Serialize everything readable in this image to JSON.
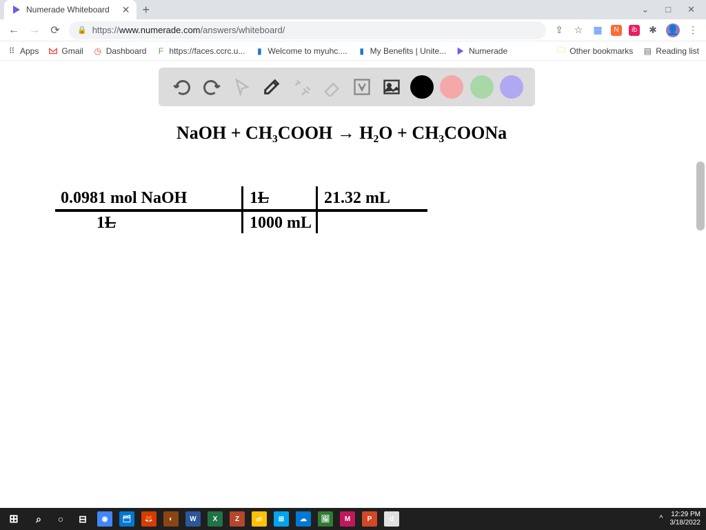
{
  "browser": {
    "tab_title": "Numerade Whiteboard",
    "url_https": "https://",
    "url_domain": "www.numerade.com",
    "url_path": "/answers/whiteboard/",
    "win_min": "⌄",
    "win_max": "□",
    "win_close": "✕"
  },
  "bookmarks": {
    "apps": "Apps",
    "gmail": "Gmail",
    "dashboard": "Dashboard",
    "faces": "https://faces.ccrc.u...",
    "myuhc": "Welcome to myuhc....",
    "benefits": "My Benefits | Unite...",
    "numerade": "Numerade",
    "other": "Other bookmarks",
    "reading": "Reading list"
  },
  "toolbar": {
    "colors": {
      "black": "#000000",
      "red": "#f4a8a8",
      "green": "#a8d8a8",
      "purple": "#b0a8f0"
    }
  },
  "handwriting": {
    "equation": "NaOH  +  CH₃COOH  →  H₂O  + CH₃COONa",
    "top1": "0.0981 mol NaOH",
    "top2": "1 L",
    "top3": "21.32 mL",
    "bot1": "1 L",
    "bot2": "1000 mL"
  },
  "clock": {
    "time": "12:29 PM",
    "date": "3/18/2022"
  },
  "taskbar_apps": [
    {
      "bg": "#0078d4",
      "label": "⊞"
    },
    {
      "bg": "#333",
      "label": "⌕"
    },
    {
      "bg": "#333",
      "label": "○"
    },
    {
      "bg": "#333",
      "label": "⊟"
    },
    {
      "bg": "#4285f4",
      "label": "◉"
    },
    {
      "bg": "#0078d4",
      "label": "🗂"
    },
    {
      "bg": "#d83b01",
      "label": "🦊"
    },
    {
      "bg": "#8b4513",
      "label": "◐"
    },
    {
      "bg": "#2b579a",
      "label": "W"
    },
    {
      "bg": "#217346",
      "label": "X"
    },
    {
      "bg": "#b7472a",
      "label": "Z"
    },
    {
      "bg": "#ffc107",
      "label": "📁"
    },
    {
      "bg": "#00a4ef",
      "label": "⊞"
    },
    {
      "bg": "#0078d4",
      "label": "☁"
    },
    {
      "bg": "#2e7d32",
      "label": "🖼"
    },
    {
      "bg": "#c2185b",
      "label": "M"
    },
    {
      "bg": "#d24726",
      "label": "P"
    },
    {
      "bg": "#e0e0e0",
      "label": "d"
    }
  ]
}
